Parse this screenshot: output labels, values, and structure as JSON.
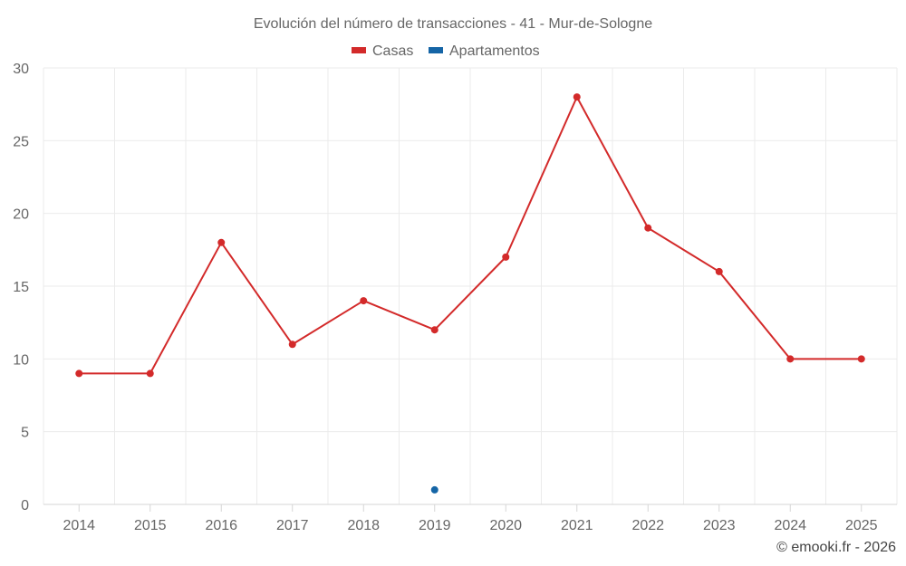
{
  "chart_data": {
    "type": "line",
    "title": "Evolución del número de transacciones - 41 - Mur-de-Sologne",
    "xlabel": "",
    "ylabel": "",
    "ylim": [
      0,
      30
    ],
    "yticks": [
      "0",
      "5",
      "10",
      "15",
      "20",
      "25",
      "30"
    ],
    "grid": true,
    "legend_position": "top-center",
    "categories": [
      "2014",
      "2015",
      "2016",
      "2017",
      "2018",
      "2019",
      "2020",
      "2021",
      "2022",
      "2023",
      "2024",
      "2025"
    ],
    "series": [
      {
        "name": "Casas",
        "color": "#d32a2a",
        "values": [
          9,
          9,
          18,
          11,
          14,
          12,
          17,
          28,
          19,
          16,
          10,
          10
        ]
      },
      {
        "name": "Apartamentos",
        "color": "#1565a6",
        "values": [
          null,
          null,
          null,
          null,
          null,
          1,
          null,
          null,
          null,
          null,
          null,
          null
        ]
      }
    ]
  },
  "credit": "© emooki.fr - 2026"
}
